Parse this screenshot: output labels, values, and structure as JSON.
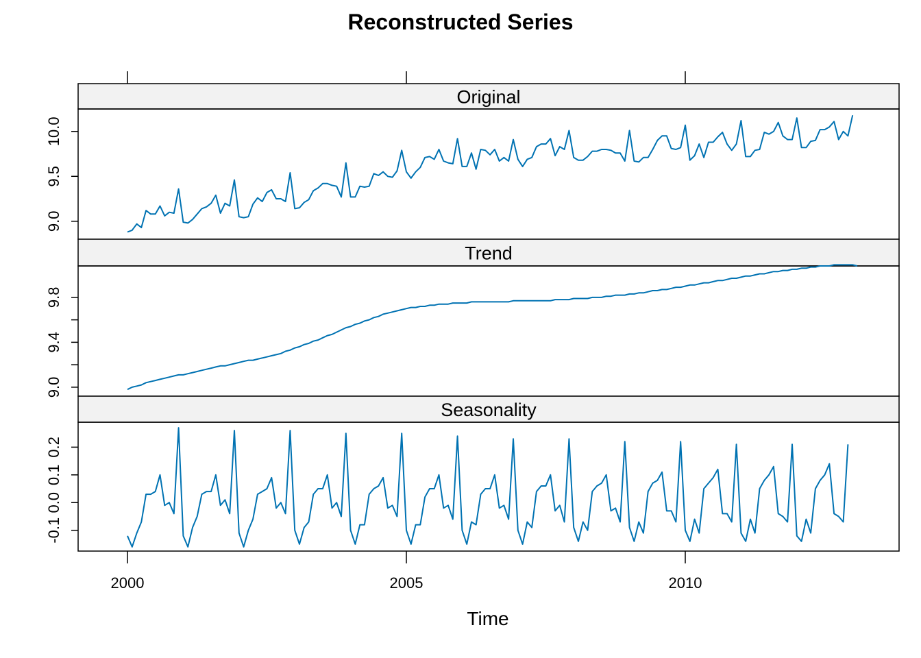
{
  "chart_data": {
    "type": "line",
    "title": "Reconstructed Series",
    "xlabel": "Time",
    "line_color": "#0072B2",
    "strip_fill": "#F2F2F2",
    "x_start": 2000.0,
    "x_step": 0.0833333,
    "xlim": [
      2000,
      2013
    ],
    "x_ticks": [
      2000,
      2005,
      2010
    ],
    "x_tick_labels": [
      "2000",
      "2005",
      "2010"
    ],
    "panels": [
      {
        "name": "Original",
        "ylim": [
          8.8,
          10.25
        ],
        "y_ticks": [
          9.0,
          9.5,
          10.0
        ],
        "y_tick_labels": [
          "9.0",
          "9.5",
          "10.0"
        ],
        "values": [
          8.88,
          8.9,
          8.97,
          8.93,
          9.12,
          9.08,
          9.08,
          9.17,
          9.06,
          9.1,
          9.09,
          9.36,
          8.99,
          8.98,
          9.02,
          9.08,
          9.14,
          9.16,
          9.2,
          9.29,
          9.09,
          9.2,
          9.17,
          9.46,
          9.05,
          9.04,
          9.05,
          9.19,
          9.26,
          9.22,
          9.32,
          9.35,
          9.25,
          9.25,
          9.22,
          9.54,
          9.14,
          9.15,
          9.21,
          9.24,
          9.34,
          9.37,
          9.42,
          9.42,
          9.4,
          9.39,
          9.27,
          9.65,
          9.27,
          9.27,
          9.39,
          9.38,
          9.39,
          9.53,
          9.51,
          9.55,
          9.5,
          9.49,
          9.56,
          9.79,
          9.55,
          9.48,
          9.55,
          9.6,
          9.71,
          9.72,
          9.69,
          9.8,
          9.67,
          9.65,
          9.64,
          9.92,
          9.61,
          9.61,
          9.76,
          9.58,
          9.8,
          9.79,
          9.74,
          9.8,
          9.67,
          9.71,
          9.67,
          9.91,
          9.69,
          9.61,
          9.69,
          9.71,
          9.83,
          9.86,
          9.86,
          9.92,
          9.73,
          9.83,
          9.8,
          10.01,
          9.71,
          9.68,
          9.68,
          9.72,
          9.78,
          9.78,
          9.8,
          9.8,
          9.79,
          9.76,
          9.76,
          9.67,
          10.01,
          9.67,
          9.66,
          9.71,
          9.71,
          9.8,
          9.9,
          9.95,
          9.95,
          9.81,
          9.8,
          9.82,
          10.07,
          9.68,
          9.73,
          9.86,
          9.71,
          9.88,
          9.88,
          9.94,
          9.99,
          9.86,
          9.79,
          9.86,
          10.12,
          9.72,
          9.72,
          9.79,
          9.8,
          9.99,
          9.97,
          10.0,
          10.1,
          9.95,
          9.91,
          9.91,
          10.15,
          9.82,
          9.82,
          9.89,
          9.9,
          10.02,
          10.02,
          10.05,
          10.11,
          9.91,
          10.0,
          9.95,
          10.18
        ]
      },
      {
        "name": "Trend",
        "ylim": [
          8.92,
          10.08
        ],
        "y_ticks": [
          9.0,
          9.2,
          9.4,
          9.6,
          9.8
        ],
        "y_tick_labels": [
          "9.0",
          "",
          "9.4",
          "",
          "9.8"
        ],
        "values": [
          8.98,
          9.0,
          9.01,
          9.02,
          9.04,
          9.05,
          9.06,
          9.07,
          9.08,
          9.09,
          9.1,
          9.11,
          9.11,
          9.12,
          9.13,
          9.14,
          9.15,
          9.16,
          9.17,
          9.18,
          9.19,
          9.19,
          9.2,
          9.21,
          9.22,
          9.23,
          9.24,
          9.24,
          9.25,
          9.26,
          9.27,
          9.28,
          9.29,
          9.3,
          9.32,
          9.33,
          9.35,
          9.36,
          9.38,
          9.39,
          9.41,
          9.42,
          9.44,
          9.46,
          9.47,
          9.49,
          9.51,
          9.53,
          9.54,
          9.56,
          9.57,
          9.59,
          9.6,
          9.62,
          9.63,
          9.65,
          9.66,
          9.67,
          9.68,
          9.69,
          9.7,
          9.71,
          9.71,
          9.72,
          9.72,
          9.73,
          9.73,
          9.74,
          9.74,
          9.74,
          9.75,
          9.75,
          9.75,
          9.75,
          9.76,
          9.76,
          9.76,
          9.76,
          9.76,
          9.76,
          9.76,
          9.76,
          9.76,
          9.77,
          9.77,
          9.77,
          9.77,
          9.77,
          9.77,
          9.77,
          9.77,
          9.77,
          9.78,
          9.78,
          9.78,
          9.78,
          9.79,
          9.79,
          9.79,
          9.79,
          9.8,
          9.8,
          9.8,
          9.81,
          9.81,
          9.82,
          9.82,
          9.82,
          9.83,
          9.83,
          9.84,
          9.84,
          9.85,
          9.86,
          9.86,
          9.87,
          9.87,
          9.88,
          9.89,
          9.89,
          9.9,
          9.91,
          9.91,
          9.92,
          9.93,
          9.93,
          9.94,
          9.95,
          9.95,
          9.96,
          9.97,
          9.97,
          9.98,
          9.99,
          9.99,
          10.0,
          10.01,
          10.01,
          10.02,
          10.03,
          10.03,
          10.04,
          10.04,
          10.05,
          10.05,
          10.06,
          10.06,
          10.07,
          10.07,
          10.08,
          10.08,
          10.08,
          10.09,
          10.09,
          10.09,
          10.09,
          10.09,
          10.08
        ]
      },
      {
        "name": "Seasonality",
        "ylim": [
          -0.175,
          0.29
        ],
        "y_ticks": [
          -0.1,
          0.0,
          0.1,
          0.2
        ],
        "y_tick_labels": [
          "-0.1",
          "0.0",
          "0.1",
          "0.2"
        ],
        "values": [
          -0.12,
          -0.16,
          -0.11,
          -0.07,
          0.03,
          0.03,
          0.04,
          0.1,
          -0.01,
          0.0,
          -0.04,
          0.27,
          -0.12,
          -0.16,
          -0.09,
          -0.05,
          0.03,
          0.04,
          0.04,
          0.1,
          -0.01,
          0.01,
          -0.04,
          0.26,
          -0.11,
          -0.16,
          -0.1,
          -0.06,
          0.03,
          0.04,
          0.05,
          0.09,
          -0.02,
          0.0,
          -0.04,
          0.26,
          -0.1,
          -0.15,
          -0.09,
          -0.07,
          0.03,
          0.05,
          0.05,
          0.1,
          -0.02,
          0.0,
          -0.05,
          0.25,
          -0.1,
          -0.15,
          -0.08,
          -0.08,
          0.03,
          0.05,
          0.06,
          0.09,
          -0.02,
          -0.01,
          -0.05,
          0.25,
          -0.1,
          -0.15,
          -0.08,
          -0.08,
          0.02,
          0.05,
          0.05,
          0.1,
          -0.02,
          -0.01,
          -0.06,
          0.24,
          -0.1,
          -0.15,
          -0.07,
          -0.08,
          0.03,
          0.05,
          0.05,
          0.1,
          -0.02,
          -0.01,
          -0.06,
          0.23,
          -0.1,
          -0.15,
          -0.07,
          -0.09,
          0.04,
          0.06,
          0.06,
          0.1,
          -0.03,
          -0.01,
          -0.07,
          0.23,
          -0.09,
          -0.14,
          -0.07,
          -0.1,
          0.04,
          0.06,
          0.07,
          0.1,
          -0.03,
          -0.02,
          -0.07,
          0.22,
          -0.09,
          -0.14,
          -0.07,
          -0.11,
          0.04,
          0.07,
          0.08,
          0.11,
          -0.03,
          -0.03,
          -0.07,
          0.22,
          -0.1,
          -0.14,
          -0.06,
          -0.11,
          0.05,
          0.07,
          0.09,
          0.12,
          -0.04,
          -0.04,
          -0.07,
          0.21,
          -0.11,
          -0.14,
          -0.06,
          -0.11,
          0.05,
          0.08,
          0.1,
          0.13,
          -0.04,
          -0.05,
          -0.07,
          0.21,
          -0.12,
          -0.14,
          -0.06,
          -0.11,
          0.05,
          0.08,
          0.1,
          0.14,
          -0.04,
          -0.05,
          -0.07,
          0.21
        ]
      }
    ]
  }
}
